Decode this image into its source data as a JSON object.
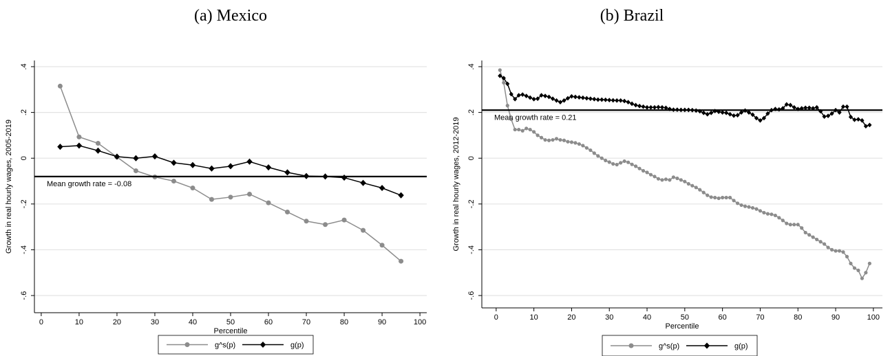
{
  "chart_data": [
    {
      "type": "line",
      "title": "(a)  Mexico",
      "xlabel": "Percentile",
      "ylabel": "Growth in real hourly wages, 2005-2019",
      "x": [
        5,
        10,
        15,
        20,
        25,
        30,
        35,
        40,
        45,
        50,
        55,
        60,
        65,
        70,
        75,
        80,
        85,
        90,
        95
      ],
      "series": [
        {
          "name": "g^s(p)",
          "color": "#8c8c8c",
          "marker": "circle",
          "values": [
            0.315,
            0.093,
            0.065,
            0.005,
            -0.055,
            -0.082,
            -0.1,
            -0.13,
            -0.18,
            -0.17,
            -0.157,
            -0.195,
            -0.235,
            -0.275,
            -0.29,
            -0.27,
            -0.315,
            -0.38,
            -0.45
          ]
        },
        {
          "name": "g(p)",
          "color": "#000000",
          "marker": "diamond",
          "values": [
            0.05,
            0.055,
            0.033,
            0.007,
            0.0,
            0.008,
            -0.02,
            -0.03,
            -0.045,
            -0.035,
            -0.015,
            -0.04,
            -0.062,
            -0.078,
            -0.08,
            -0.085,
            -0.108,
            -0.13,
            -0.162
          ]
        }
      ],
      "mean_line": -0.08,
      "annotation": "Mean growth rate = -0.08",
      "xlim": [
        -1.8,
        101.8
      ],
      "xticks": [
        0,
        10,
        20,
        30,
        40,
        50,
        60,
        70,
        80,
        90,
        100
      ],
      "ylim": [
        -0.675,
        0.427
      ],
      "yticks": [
        {
          "value": -0.6,
          "label": "-.6"
        },
        {
          "value": -0.4,
          "label": "-.4"
        },
        {
          "value": -0.2,
          "label": "-.2"
        },
        0,
        {
          "value": 0.2,
          "label": ".2"
        },
        {
          "value": 0.4,
          "label": ".4"
        }
      ],
      "grid": true
    },
    {
      "type": "line",
      "title": "(b) Brazil",
      "xlabel": "Percentile",
      "ylabel": "Growth in real hourly wages, 2012-2019",
      "x": [
        1,
        2,
        3,
        4,
        5,
        6,
        7,
        8,
        9,
        10,
        11,
        12,
        13,
        14,
        15,
        16,
        17,
        18,
        19,
        20,
        21,
        22,
        23,
        24,
        25,
        26,
        27,
        28,
        29,
        30,
        31,
        32,
        33,
        34,
        35,
        36,
        37,
        38,
        39,
        40,
        41,
        42,
        43,
        44,
        45,
        46,
        47,
        48,
        49,
        50,
        51,
        52,
        53,
        54,
        55,
        56,
        57,
        58,
        59,
        60,
        61,
        62,
        63,
        64,
        65,
        66,
        67,
        68,
        69,
        70,
        71,
        72,
        73,
        74,
        75,
        76,
        77,
        78,
        79,
        80,
        81,
        82,
        83,
        84,
        85,
        86,
        87,
        88,
        89,
        90,
        91,
        92,
        93,
        94,
        95,
        96,
        97,
        98,
        99
      ],
      "series": [
        {
          "name": "g^s(p)",
          "color": "#8c8c8c",
          "marker": "circle",
          "values": [
            0.385,
            0.33,
            0.23,
            0.17,
            0.125,
            0.125,
            0.12,
            0.13,
            0.125,
            0.115,
            0.1,
            0.09,
            0.08,
            0.078,
            0.08,
            0.085,
            0.08,
            0.078,
            0.072,
            0.07,
            0.067,
            0.062,
            0.055,
            0.045,
            0.035,
            0.022,
            0.01,
            0,
            -0.01,
            -0.017,
            -0.025,
            -0.028,
            -0.02,
            -0.013,
            -0.018,
            -0.027,
            -0.035,
            -0.045,
            -0.055,
            -0.062,
            -0.072,
            -0.08,
            -0.09,
            -0.095,
            -0.092,
            -0.095,
            -0.083,
            -0.088,
            -0.095,
            -0.102,
            -0.112,
            -0.12,
            -0.128,
            -0.138,
            -0.15,
            -0.162,
            -0.17,
            -0.172,
            -0.175,
            -0.172,
            -0.172,
            -0.172,
            -0.185,
            -0.197,
            -0.205,
            -0.21,
            -0.213,
            -0.217,
            -0.222,
            -0.23,
            -0.238,
            -0.243,
            -0.245,
            -0.25,
            -0.26,
            -0.272,
            -0.285,
            -0.29,
            -0.29,
            -0.29,
            -0.305,
            -0.325,
            -0.335,
            -0.345,
            -0.355,
            -0.365,
            -0.375,
            -0.39,
            -0.4,
            -0.405,
            -0.405,
            -0.41,
            -0.43,
            -0.46,
            -0.48,
            -0.49,
            -0.525,
            -0.5,
            -0.46
          ]
        },
        {
          "name": "g(p)",
          "color": "#000000",
          "marker": "diamond",
          "values": [
            0.36,
            0.35,
            0.325,
            0.28,
            0.258,
            0.275,
            0.278,
            0.272,
            0.265,
            0.258,
            0.26,
            0.275,
            0.272,
            0.268,
            0.26,
            0.252,
            0.245,
            0.252,
            0.262,
            0.27,
            0.268,
            0.266,
            0.264,
            0.262,
            0.26,
            0.258,
            0.256,
            0.256,
            0.255,
            0.254,
            0.253,
            0.252,
            0.252,
            0.25,
            0.245,
            0.238,
            0.232,
            0.228,
            0.225,
            0.222,
            0.222,
            0.222,
            0.223,
            0.222,
            0.22,
            0.215,
            0.212,
            0.212,
            0.211,
            0.211,
            0.211,
            0.21,
            0.208,
            0.205,
            0.198,
            0.192,
            0.198,
            0.206,
            0.203,
            0.2,
            0.198,
            0.192,
            0.186,
            0.188,
            0.2,
            0.208,
            0.2,
            0.19,
            0.175,
            0.165,
            0.175,
            0.195,
            0.21,
            0.215,
            0.213,
            0.218,
            0.235,
            0.232,
            0.222,
            0.215,
            0.218,
            0.22,
            0.22,
            0.218,
            0.222,
            0.205,
            0.182,
            0.185,
            0.195,
            0.21,
            0.2,
            0.225,
            0.225,
            0.18,
            0.168,
            0.17,
            0.165,
            0.14,
            0.145
          ]
        }
      ],
      "mean_line": 0.21,
      "annotation": "Mean growth rate = 0.21",
      "xlim": [
        -3.8,
        102.4
      ],
      "xticks": [
        0,
        10,
        20,
        30,
        40,
        50,
        60,
        70,
        80,
        90,
        100
      ],
      "ylim": [
        -0.654,
        0.427
      ],
      "yticks": [
        {
          "value": -0.6,
          "label": "-.6"
        },
        {
          "value": -0.4,
          "label": "-.4"
        },
        {
          "value": -0.2,
          "label": "-.2"
        },
        0,
        {
          "value": 0.2,
          "label": ".2"
        },
        {
          "value": 0.4,
          "label": ".4"
        }
      ],
      "grid": true
    }
  ]
}
